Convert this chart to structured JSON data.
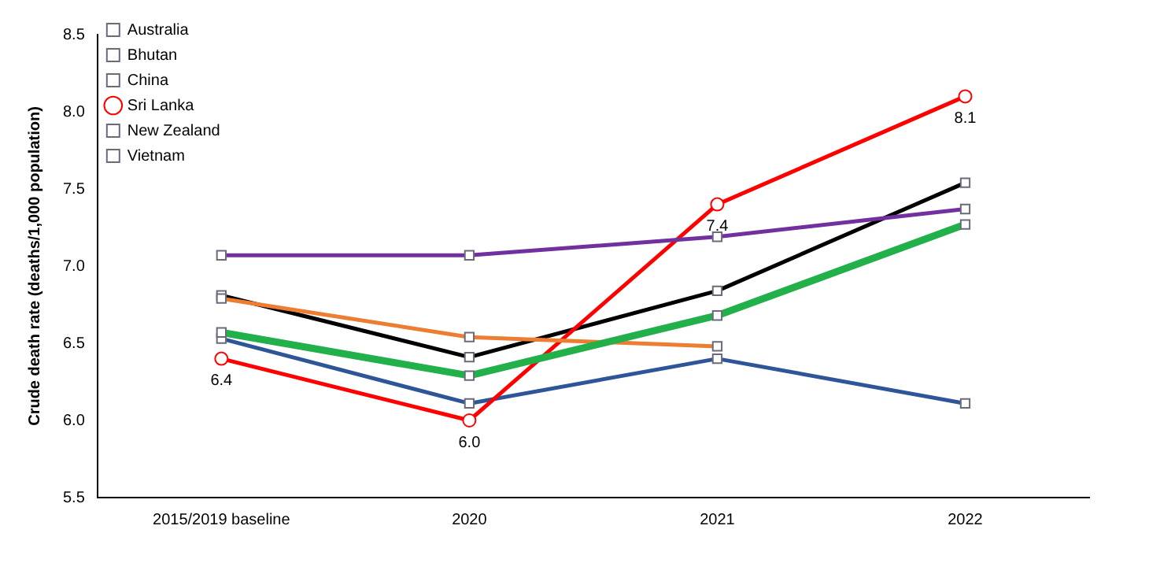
{
  "chart_data": {
    "type": "line",
    "ylabel": "Crude death rate (deaths/1,000 population)",
    "categories": [
      "2015/2019 baseline",
      "2020",
      "2021",
      "2022"
    ],
    "ylim": [
      5.5,
      8.5
    ],
    "yticks": [
      {
        "value": 5.5,
        "label": "5.5"
      },
      {
        "value": 6,
        "label": "6.0"
      },
      {
        "value": 6.5,
        "label": "6.5"
      },
      {
        "value": 7,
        "label": "7.0"
      },
      {
        "value": 7.5,
        "label": "7.5"
      },
      {
        "value": 8,
        "label": "8.0"
      },
      {
        "value": 8.5,
        "label": "8.5"
      }
    ],
    "grid": false,
    "legend": "top left",
    "marker": "square",
    "series": [
      {
        "name": "Australia",
        "color": "#22b04a",
        "values": [
          6.57,
          6.29,
          6.68,
          7.27
        ]
      },
      {
        "name": "Bhutan",
        "color": "#ed7d31",
        "values": [
          6.79,
          6.54,
          6.48,
          null
        ]
      },
      {
        "name": "China",
        "color": "#7030a0",
        "values": [
          7.07,
          7.07,
          7.19,
          7.37
        ]
      },
      {
        "name": "Sri Lanka",
        "color": "#ff0000",
        "marker": "circle",
        "values": [
          6.4,
          6.0,
          7.4,
          8.1
        ],
        "value_labels": [
          "6.4",
          "6.0",
          "7.4",
          "8.1"
        ]
      },
      {
        "name": "New Zealand",
        "color": "#000000",
        "values": [
          6.81,
          6.41,
          6.84,
          7.54
        ]
      },
      {
        "name": "Vietnam",
        "color": "#2e5597",
        "values": [
          6.53,
          6.11,
          6.4,
          6.11
        ]
      }
    ]
  }
}
